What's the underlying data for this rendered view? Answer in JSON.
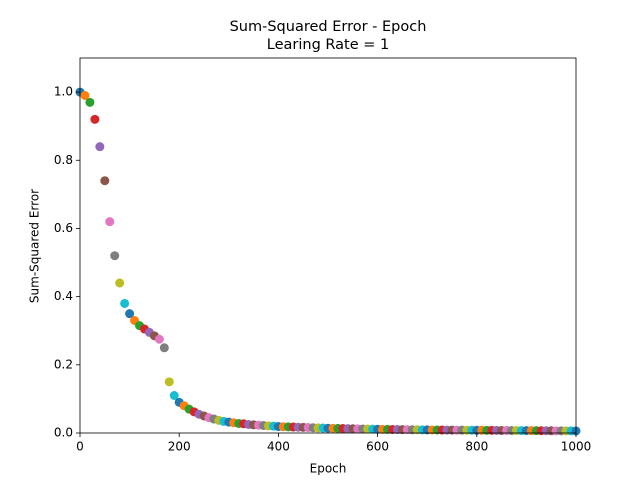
{
  "chart_data": {
    "type": "scatter",
    "title": "Sum-Squared Error - Epoch",
    "subtitle": "Learing Rate = 1",
    "x_label": "Epoch",
    "y_label": "Sum-Squared Error",
    "xlim": [
      0,
      1000
    ],
    "ylim": [
      0,
      1.1
    ],
    "xticks": [
      0,
      200,
      400,
      600,
      800,
      1000
    ],
    "yticks": [
      {
        "value": 0,
        "label": "0.0"
      },
      0.2,
      0.4,
      0.6,
      0.8,
      {
        "value": 1,
        "label": "1.0"
      }
    ],
    "grid": false,
    "color_cycle": [
      "#1f77b4",
      "#ff7f0e",
      "#2ca02c",
      "#d62728",
      "#9467bd",
      "#8c564b",
      "#e377c2",
      "#7f7f7f",
      "#bcbd22",
      "#17becf"
    ],
    "x": [
      0,
      10,
      20,
      30,
      40,
      50,
      60,
      70,
      80,
      90,
      100,
      110,
      120,
      130,
      140,
      150,
      160,
      170,
      180,
      190,
      200,
      210,
      220,
      230,
      240,
      250,
      260,
      270,
      280,
      290,
      300,
      310,
      320,
      330,
      340,
      350,
      360,
      370,
      380,
      390,
      400,
      410,
      420,
      430,
      440,
      450,
      460,
      470,
      480,
      490,
      500,
      510,
      520,
      530,
      540,
      550,
      560,
      570,
      580,
      590,
      600,
      610,
      620,
      630,
      640,
      650,
      660,
      670,
      680,
      690,
      700,
      710,
      720,
      730,
      740,
      750,
      760,
      770,
      780,
      790,
      800,
      810,
      820,
      830,
      840,
      850,
      860,
      870,
      880,
      890,
      900,
      910,
      920,
      930,
      940,
      950,
      960,
      970,
      980,
      990,
      1000
    ],
    "values": [
      1.0,
      0.99,
      0.97,
      0.92,
      0.84,
      0.74,
      0.62,
      0.52,
      0.44,
      0.38,
      0.35,
      0.33,
      0.315,
      0.305,
      0.295,
      0.285,
      0.275,
      0.25,
      0.15,
      0.11,
      0.09,
      0.08,
      0.07,
      0.062,
      0.055,
      0.05,
      0.045,
      0.041,
      0.037,
      0.034,
      0.032,
      0.03,
      0.028,
      0.027,
      0.025,
      0.024,
      0.023,
      0.022,
      0.021,
      0.02,
      0.019,
      0.0185,
      0.018,
      0.0175,
      0.017,
      0.0165,
      0.016,
      0.0155,
      0.015,
      0.0145,
      0.014,
      0.0137,
      0.0134,
      0.0131,
      0.0128,
      0.0125,
      0.0122,
      0.0119,
      0.0116,
      0.0113,
      0.011,
      0.0108,
      0.0106,
      0.0104,
      0.0102,
      0.01,
      0.0098,
      0.0096,
      0.0094,
      0.0092,
      0.009,
      0.0089,
      0.0088,
      0.0087,
      0.0086,
      0.0085,
      0.0084,
      0.0083,
      0.0082,
      0.0081,
      0.008,
      0.0079,
      0.0078,
      0.0077,
      0.0076,
      0.0075,
      0.0074,
      0.0073,
      0.0072,
      0.0071,
      0.007,
      0.0069,
      0.0068,
      0.0067,
      0.0066,
      0.0065,
      0.0064,
      0.0063,
      0.0062,
      0.0061,
      0.006
    ]
  }
}
